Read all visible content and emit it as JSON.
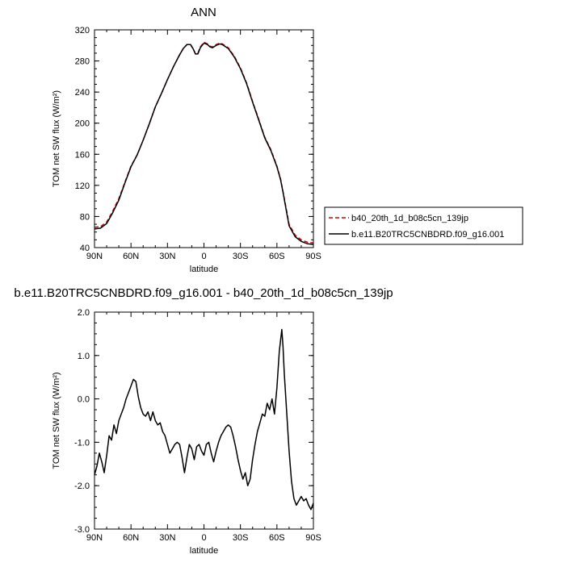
{
  "chart_data": [
    {
      "type": "line",
      "title": "ANN",
      "xlabel": "latitude",
      "ylabel": "TOM net SW flux (W/m²)",
      "x_tick_labels": [
        "90N",
        "60N",
        "30N",
        "0",
        "30S",
        "60S",
        "90S"
      ],
      "x_ticks": [
        90,
        60,
        30,
        0,
        -30,
        -60,
        -90
      ],
      "xlim": [
        90,
        -90
      ],
      "y_tick_labels": [
        "40",
        "80",
        "120",
        "160",
        "200",
        "240",
        "280",
        "320"
      ],
      "y_ticks": [
        40,
        80,
        120,
        160,
        200,
        240,
        280,
        320
      ],
      "ylim": [
        40,
        320
      ],
      "legend_position": "right",
      "series": [
        {
          "name": "b40_20th_1d_b08c5cn_139jp",
          "color": "#cc0000",
          "dash": "dashed",
          "x": [
            90,
            85,
            80,
            75,
            70,
            65,
            60,
            55,
            50,
            45,
            40,
            35,
            30,
            25,
            20,
            17,
            14,
            11,
            9,
            7,
            5,
            3,
            0,
            -3,
            -5,
            -7,
            -10,
            -13,
            -15,
            -20,
            -25,
            -30,
            -35,
            -40,
            -45,
            -50,
            -55,
            -60,
            -63,
            -65,
            -68,
            -70,
            -75,
            -80,
            -85,
            -90
          ],
          "y": [
            66,
            67,
            73,
            87,
            103,
            124,
            145,
            159,
            178,
            199,
            221,
            238,
            256,
            273,
            288,
            296,
            301,
            301,
            296,
            289,
            290,
            298,
            304,
            302,
            299,
            298,
            301,
            303,
            302,
            297,
            286,
            271,
            252,
            228,
            205,
            182,
            166,
            145,
            128,
            112,
            87,
            70,
            56,
            50,
            47,
            46
          ]
        },
        {
          "name": "b.e11.B20TRC5CNBDRD.f09_g16.001",
          "color": "#000000",
          "dash": "solid",
          "x": [
            90,
            85,
            80,
            75,
            70,
            65,
            60,
            55,
            50,
            45,
            40,
            35,
            30,
            25,
            20,
            17,
            14,
            11,
            9,
            7,
            5,
            3,
            0,
            -3,
            -5,
            -7,
            -10,
            -13,
            -15,
            -20,
            -25,
            -30,
            -35,
            -40,
            -45,
            -50,
            -55,
            -60,
            -63,
            -65,
            -68,
            -70,
            -75,
            -80,
            -85,
            -90
          ],
          "y": [
            64,
            65,
            71,
            85,
            101,
            123,
            144,
            159,
            178,
            199,
            221,
            238,
            256,
            273,
            288,
            296,
            301,
            301,
            296,
            289,
            289,
            297,
            303,
            301,
            298,
            297,
            300,
            302,
            301,
            296,
            285,
            270,
            251,
            227,
            204,
            181,
            165,
            144,
            127,
            111,
            85,
            68,
            54,
            48,
            45,
            44
          ]
        }
      ]
    },
    {
      "type": "line",
      "title": "b.e11.B20TRC5CNBDRD.f09_g16.001 - b40_20th_1d_b08c5cn_139jp",
      "xlabel": "latitude",
      "ylabel": "TOM net SW flux (W/m²)",
      "x_tick_labels": [
        "90N",
        "60N",
        "30N",
        "0",
        "30S",
        "60S",
        "90S"
      ],
      "x_ticks": [
        90,
        60,
        30,
        0,
        -30,
        -60,
        -90
      ],
      "xlim": [
        90,
        -90
      ],
      "y_tick_labels": [
        "-3.0",
        "-2.0",
        "-1.0",
        "0.0",
        "1.0",
        "2.0"
      ],
      "y_ticks": [
        -3,
        -2,
        -1,
        0,
        1,
        2
      ],
      "ylim": [
        -3,
        2
      ],
      "series": [
        {
          "color": "#000000",
          "dash": "solid",
          "x": [
            90,
            88,
            86,
            84,
            82,
            80,
            78,
            76,
            74,
            72,
            70,
            68,
            66,
            64,
            62,
            60,
            58,
            56,
            54,
            52,
            50,
            48,
            46,
            44,
            42,
            40,
            38,
            36,
            34,
            32,
            30,
            28,
            26,
            24,
            22,
            20,
            18,
            16,
            14,
            12,
            10,
            8,
            6,
            4,
            2,
            0,
            -2,
            -4,
            -6,
            -8,
            -10,
            -12,
            -14,
            -16,
            -18,
            -20,
            -22,
            -24,
            -26,
            -28,
            -30,
            -32,
            -34,
            -36,
            -38,
            -40,
            -42,
            -44,
            -46,
            -48,
            -50,
            -52,
            -54,
            -56,
            -58,
            -60,
            -62,
            -64,
            -65,
            -66,
            -68,
            -70,
            -72,
            -74,
            -76,
            -78,
            -80,
            -82,
            -84,
            -86,
            -88,
            -90
          ],
          "y": [
            -1.75,
            -1.55,
            -1.25,
            -1.45,
            -1.7,
            -1.3,
            -0.85,
            -0.95,
            -0.6,
            -0.8,
            -0.5,
            -0.35,
            -0.2,
            0.0,
            0.15,
            0.3,
            0.45,
            0.4,
            0.05,
            -0.2,
            -0.35,
            -0.4,
            -0.3,
            -0.5,
            -0.3,
            -0.5,
            -0.6,
            -0.55,
            -0.75,
            -0.85,
            -1.05,
            -1.25,
            -1.15,
            -1.05,
            -1.0,
            -1.05,
            -1.35,
            -1.7,
            -1.35,
            -1.05,
            -1.15,
            -1.4,
            -1.1,
            -1.05,
            -1.2,
            -1.3,
            -1.05,
            -1.0,
            -1.25,
            -1.45,
            -1.2,
            -1.0,
            -0.85,
            -0.75,
            -0.65,
            -0.6,
            -0.65,
            -0.85,
            -1.1,
            -1.4,
            -1.65,
            -1.85,
            -1.7,
            -2.0,
            -1.85,
            -1.4,
            -1.05,
            -0.75,
            -0.55,
            -0.35,
            -0.4,
            -0.1,
            -0.25,
            0.0,
            -0.35,
            0.25,
            1.1,
            1.6,
            1.2,
            0.6,
            -0.3,
            -1.2,
            -1.9,
            -2.3,
            -2.45,
            -2.35,
            -2.25,
            -2.35,
            -2.3,
            -2.45,
            -2.55,
            -2.4
          ]
        }
      ]
    }
  ]
}
